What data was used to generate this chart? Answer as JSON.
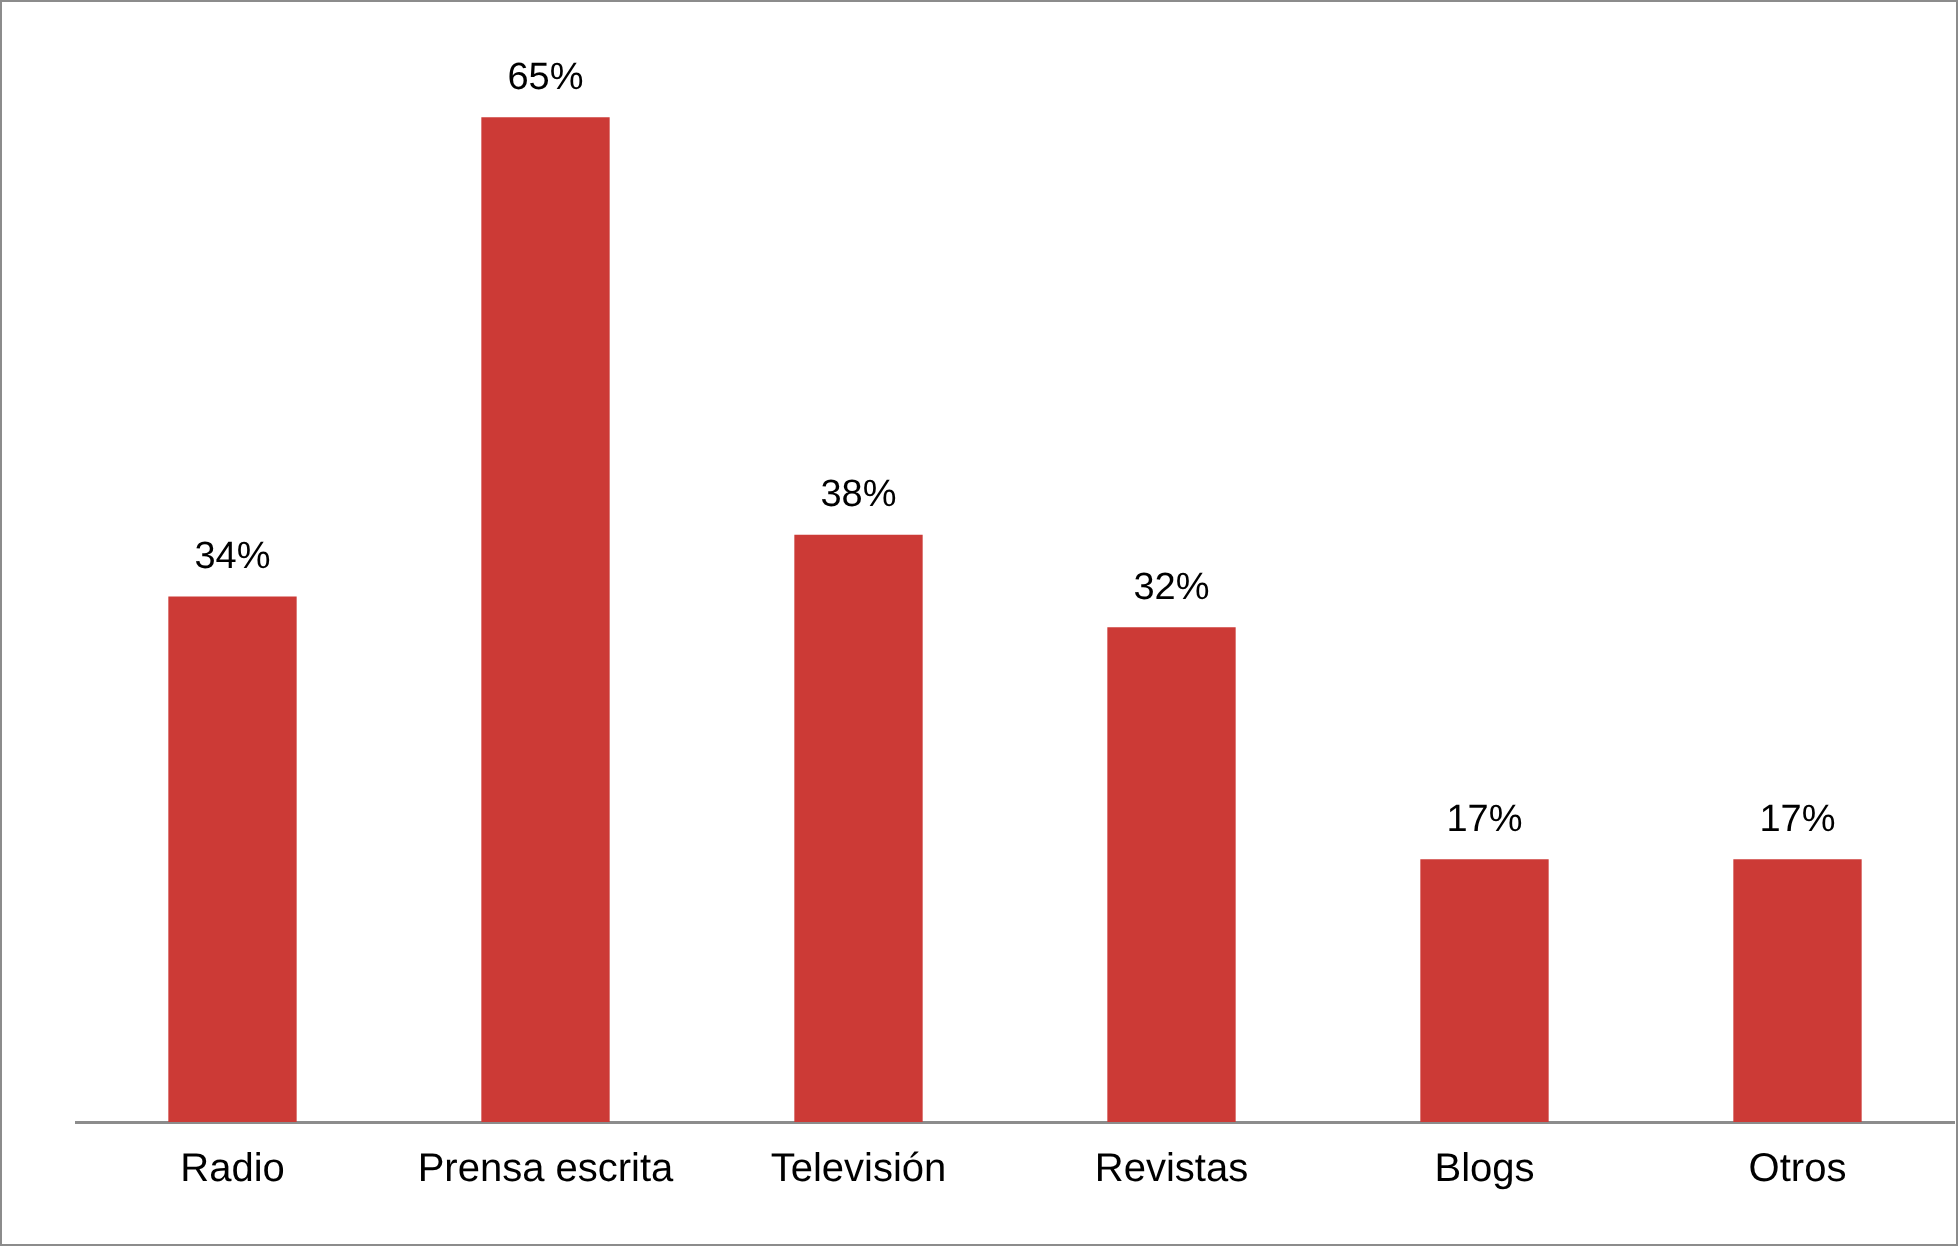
{
  "chart_data": {
    "type": "bar",
    "categories": [
      "Radio",
      "Prensa escrita",
      "Televisión",
      "Revistas",
      "Blogs",
      "Otros"
    ],
    "values": [
      34,
      65,
      38,
      32,
      17,
      17
    ],
    "value_labels": [
      "34%",
      "65%",
      "38%",
      "32%",
      "17%",
      "17%"
    ],
    "color": "#cc3a36",
    "grid": false,
    "legend": false,
    "tick_labels": "x"
  }
}
